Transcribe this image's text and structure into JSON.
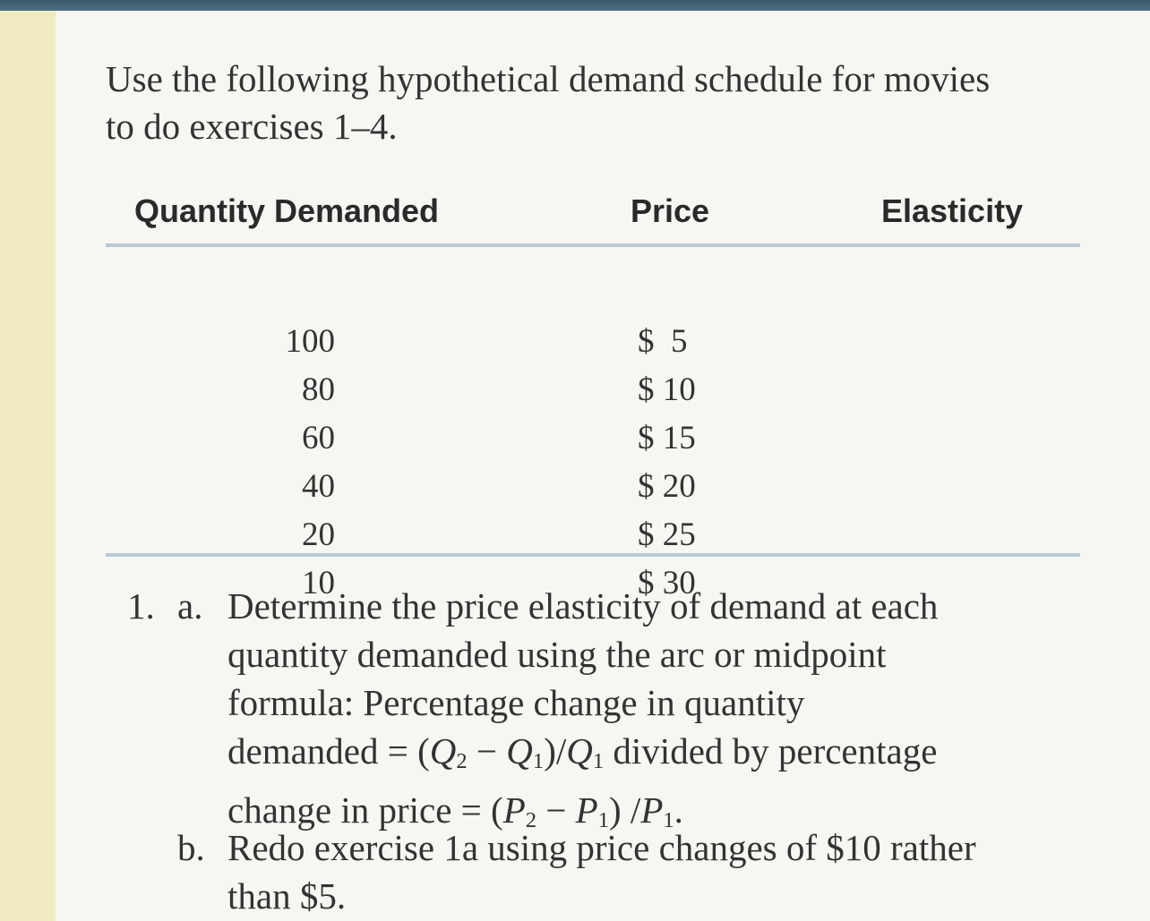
{
  "intro": {
    "line1": "Use the following hypothetical demand schedule for movies",
    "line2": "to do exercises 1–4."
  },
  "table": {
    "headers": {
      "quantity": "Quantity Demanded",
      "price": "Price",
      "elasticity": "Elasticity"
    },
    "rows": [
      {
        "quantity": "100",
        "price": "$  5",
        "elasticity": ""
      },
      {
        "quantity": "80",
        "price": "$ 10",
        "elasticity": ""
      },
      {
        "quantity": "60",
        "price": "$ 15",
        "elasticity": ""
      },
      {
        "quantity": "40",
        "price": "$ 20",
        "elasticity": ""
      },
      {
        "quantity": "20",
        "price": "$ 25",
        "elasticity": ""
      },
      {
        "quantity": "10",
        "price": "$ 30",
        "elasticity": ""
      }
    ]
  },
  "exercise1": {
    "number": "1.",
    "a": {
      "label": "a.",
      "line1": "Determine the price elasticity of demand at each",
      "line2": "quantity demanded using the arc or midpoint",
      "line3": "formula: Percentage change in quantity",
      "line4_pre": "demanded = (",
      "line4_mid1": " − ",
      "line4_mid2": ")/",
      "line4_post": " divided by percentage",
      "line5_pre": "change in price = (",
      "line5_mid1": " − ",
      "line5_mid2": ") /",
      "line5_post": "."
    },
    "b": {
      "label": "b.",
      "line1": "Redo exercise 1a using price changes of $10 rather",
      "line2": "than $5."
    },
    "symbols": {
      "q": "Q",
      "p": "P",
      "sub1": "1",
      "sub2": "2"
    }
  }
}
